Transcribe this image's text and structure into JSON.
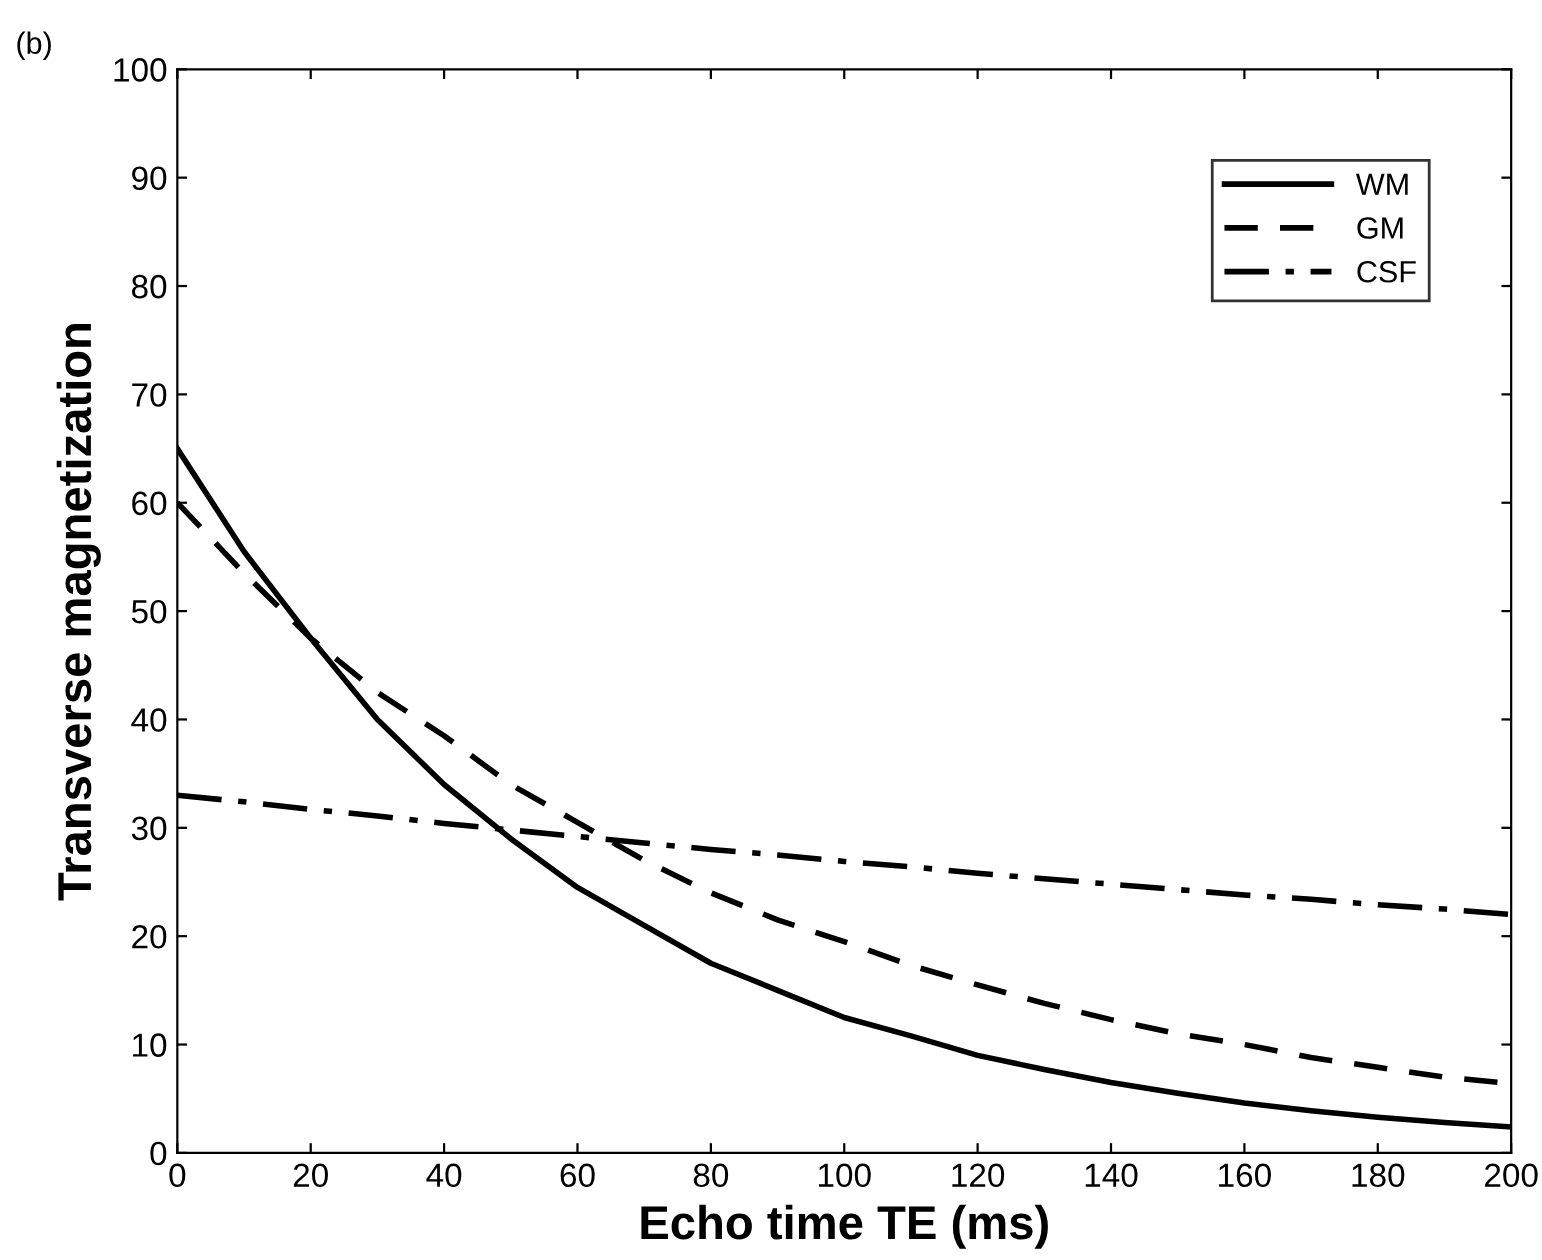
{
  "chart_data": {
    "type": "line",
    "xlabel": "Echo time TE (ms)",
    "ylabel": "Transverse magnetization",
    "annotations": [
      "(b)"
    ],
    "x": [
      0,
      10,
      20,
      30,
      40,
      50,
      60,
      70,
      80,
      90,
      100,
      110,
      120,
      130,
      140,
      150,
      160,
      170,
      180,
      190,
      200
    ],
    "series": [
      {
        "name": "WM",
        "color": "#000000",
        "line_style": "solid",
        "values": [
          65,
          55.5,
          47.5,
          40,
          34,
          29,
          24.5,
          21,
          17.5,
          15,
          12.5,
          10.8,
          9,
          7.7,
          6.5,
          5.5,
          4.6,
          3.9,
          3.3,
          2.8,
          2.4
        ]
      },
      {
        "name": "GM",
        "color": "#000000",
        "line_style": "dashed",
        "values": [
          60,
          53.5,
          47.5,
          42.5,
          38.5,
          34,
          30.5,
          27,
          24,
          21.5,
          19.5,
          17.3,
          15.5,
          13.8,
          12.3,
          11,
          10,
          8.8,
          7.9,
          7,
          6.4
        ]
      },
      {
        "name": "CSF",
        "color": "#000000",
        "line_style": "dashdot",
        "values": [
          33,
          32.4,
          31.7,
          31.1,
          30.4,
          29.8,
          29.2,
          28.6,
          28,
          27.5,
          26.9,
          26.4,
          25.8,
          25.3,
          24.8,
          24.3,
          23.8,
          23.4,
          22.9,
          22.5,
          22
        ]
      }
    ],
    "xlim": [
      0,
      200
    ],
    "ylim": [
      0,
      100
    ],
    "xticks": [
      0,
      20,
      40,
      60,
      80,
      100,
      120,
      140,
      160,
      180,
      200
    ],
    "yticks": [
      0,
      10,
      20,
      30,
      40,
      50,
      60,
      70,
      80,
      90,
      100
    ],
    "grid": false,
    "legend": "top right",
    "marker": "none"
  }
}
